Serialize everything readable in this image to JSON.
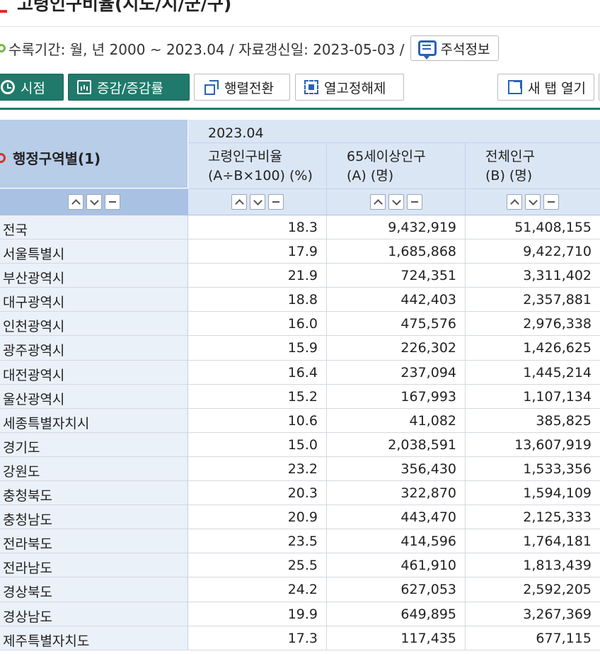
{
  "page": {
    "title": "고령인구비율(시도/시/군/구)"
  },
  "meta": {
    "period_text": "수록기간: 월, 년 2000 ~ 2023.04 / 자료갱신일: 2023-05-03 /",
    "note_button": "주석정보"
  },
  "toolbar": {
    "timepoint": "시점",
    "change": "증감/증감률",
    "pivot": "행렬전환",
    "unfix_columns": "열고정해제",
    "new_tab": "새 탭 열기"
  },
  "table": {
    "row_header": "행정구역별(1)",
    "period": "2023.04",
    "columns": [
      {
        "line1": "고령인구비율",
        "line2": "(A÷B×100) (%)"
      },
      {
        "line1": "65세이상인구",
        "line2": "(A) (명)"
      },
      {
        "line1": "전체인구",
        "line2": "(B) (명)"
      }
    ],
    "rows": [
      {
        "region": "전국",
        "ratio": "18.3",
        "elderly": "9,432,919",
        "total": "51,408,155"
      },
      {
        "region": "서울특별시",
        "ratio": "17.9",
        "elderly": "1,685,868",
        "total": "9,422,710"
      },
      {
        "region": "부산광역시",
        "ratio": "21.9",
        "elderly": "724,351",
        "total": "3,311,402"
      },
      {
        "region": "대구광역시",
        "ratio": "18.8",
        "elderly": "442,403",
        "total": "2,357,881"
      },
      {
        "region": "인천광역시",
        "ratio": "16.0",
        "elderly": "475,576",
        "total": "2,976,338"
      },
      {
        "region": "광주광역시",
        "ratio": "15.9",
        "elderly": "226,302",
        "total": "1,426,625"
      },
      {
        "region": "대전광역시",
        "ratio": "16.4",
        "elderly": "237,094",
        "total": "1,445,214"
      },
      {
        "region": "울산광역시",
        "ratio": "15.2",
        "elderly": "167,993",
        "total": "1,107,134"
      },
      {
        "region": "세종특별자치시",
        "ratio": "10.6",
        "elderly": "41,082",
        "total": "385,825"
      },
      {
        "region": "경기도",
        "ratio": "15.0",
        "elderly": "2,038,591",
        "total": "13,607,919"
      },
      {
        "region": "강원도",
        "ratio": "23.2",
        "elderly": "356,430",
        "total": "1,533,356"
      },
      {
        "region": "충청북도",
        "ratio": "20.3",
        "elderly": "322,870",
        "total": "1,594,109"
      },
      {
        "region": "충청남도",
        "ratio": "20.9",
        "elderly": "443,470",
        "total": "2,125,333"
      },
      {
        "region": "전라북도",
        "ratio": "23.5",
        "elderly": "414,596",
        "total": "1,764,181"
      },
      {
        "region": "전라남도",
        "ratio": "25.5",
        "elderly": "461,910",
        "total": "1,813,439"
      },
      {
        "region": "경상북도",
        "ratio": "24.2",
        "elderly": "627,053",
        "total": "2,592,205"
      },
      {
        "region": "경상남도",
        "ratio": "19.9",
        "elderly": "649,895",
        "total": "3,267,369"
      },
      {
        "region": "제주특별자치도",
        "ratio": "17.3",
        "elderly": "117,435",
        "total": "677,115"
      }
    ]
  },
  "colors": {
    "accent_teal": "#1f7a6b",
    "header_blue": "#b7cde8",
    "header_light": "#dbe6f5",
    "row_label_bg": "#ebf1f9",
    "title_mark_red": "#d9302b"
  }
}
